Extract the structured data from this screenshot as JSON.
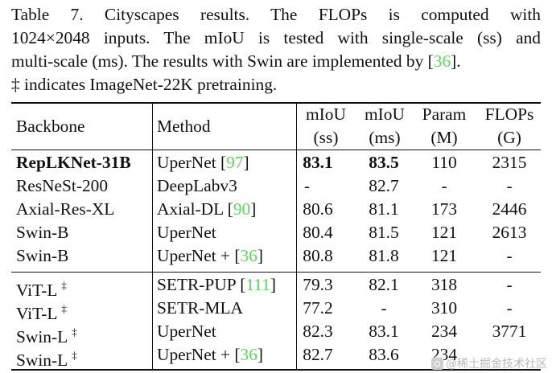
{
  "caption": {
    "line1": "Table 7.   Cityscapes results.   The FLOPs is computed with",
    "line2": "1024×2048 inputs. The mIoU is tested with single-scale (ss) and",
    "line3_pre": "multi-scale (ms). The results with Swin are implemented by [",
    "line3_ref": "36",
    "line3_post": "].",
    "line4": "‡ indicates ImageNet-22K pretraining."
  },
  "headers": {
    "backbone": "Backbone",
    "method": "Method",
    "miou_ss_top": "mIoU",
    "miou_ss_bottom": "(ss)",
    "miou_ms_top": "mIoU",
    "miou_ms_bottom": "(ms)",
    "param_top": "Param",
    "param_bottom": "(M)",
    "flops_top": "FLOPs",
    "flops_bottom": "(G)"
  },
  "rows": [
    {
      "backbone": "RepLKNet-31B",
      "dagger": "",
      "method": "UperNet [",
      "ref": "97",
      "method_post": "]",
      "ss": "83.1",
      "ms": "83.5",
      "param": "110",
      "flops": "2315"
    },
    {
      "backbone": "ResNeSt-200",
      "dagger": "",
      "method": "DeepLabv3",
      "ref": "",
      "method_post": "",
      "ss": "-",
      "ms": "82.7",
      "param": "-",
      "flops": "-"
    },
    {
      "backbone": "Axial-Res-XL",
      "dagger": "",
      "method": "Axial-DL [",
      "ref": "90",
      "method_post": "]",
      "ss": "80.6",
      "ms": "81.1",
      "param": "173",
      "flops": "2446"
    },
    {
      "backbone": "Swin-B",
      "dagger": "",
      "method": "UperNet",
      "ref": "",
      "method_post": "",
      "ss": "80.4",
      "ms": "81.5",
      "param": "121",
      "flops": "2613"
    },
    {
      "backbone": "Swin-B",
      "dagger": "",
      "method": "UperNet + [",
      "ref": "36",
      "method_post": "]",
      "ss": "80.8",
      "ms": "81.8",
      "param": "121",
      "flops": "-"
    },
    {
      "backbone": "ViT-L",
      "dagger": "‡",
      "method": "SETR-PUP [",
      "ref": "111",
      "method_post": "]",
      "ss": "79.3",
      "ms": "82.1",
      "param": "318",
      "flops": "-"
    },
    {
      "backbone": "ViT-L",
      "dagger": "‡",
      "method": "SETR-MLA",
      "ref": "",
      "method_post": "",
      "ss": "77.2",
      "ms": "-",
      "param": "310",
      "flops": "-"
    },
    {
      "backbone": "Swin-L",
      "dagger": "‡",
      "method": "UperNet",
      "ref": "",
      "method_post": "",
      "ss": "82.3",
      "ms": "83.1",
      "param": "234",
      "flops": "3771"
    },
    {
      "backbone": "Swin-L",
      "dagger": "‡",
      "method": "UperNet + [",
      "ref": "36",
      "method_post": "]",
      "ss": "82.7",
      "ms": "83.6",
      "param": "234",
      "flops": ""
    }
  ],
  "watermark": "@稀土掘金技术社区",
  "colors": {
    "reference_link": "#5fd35f",
    "text": "#111111"
  }
}
